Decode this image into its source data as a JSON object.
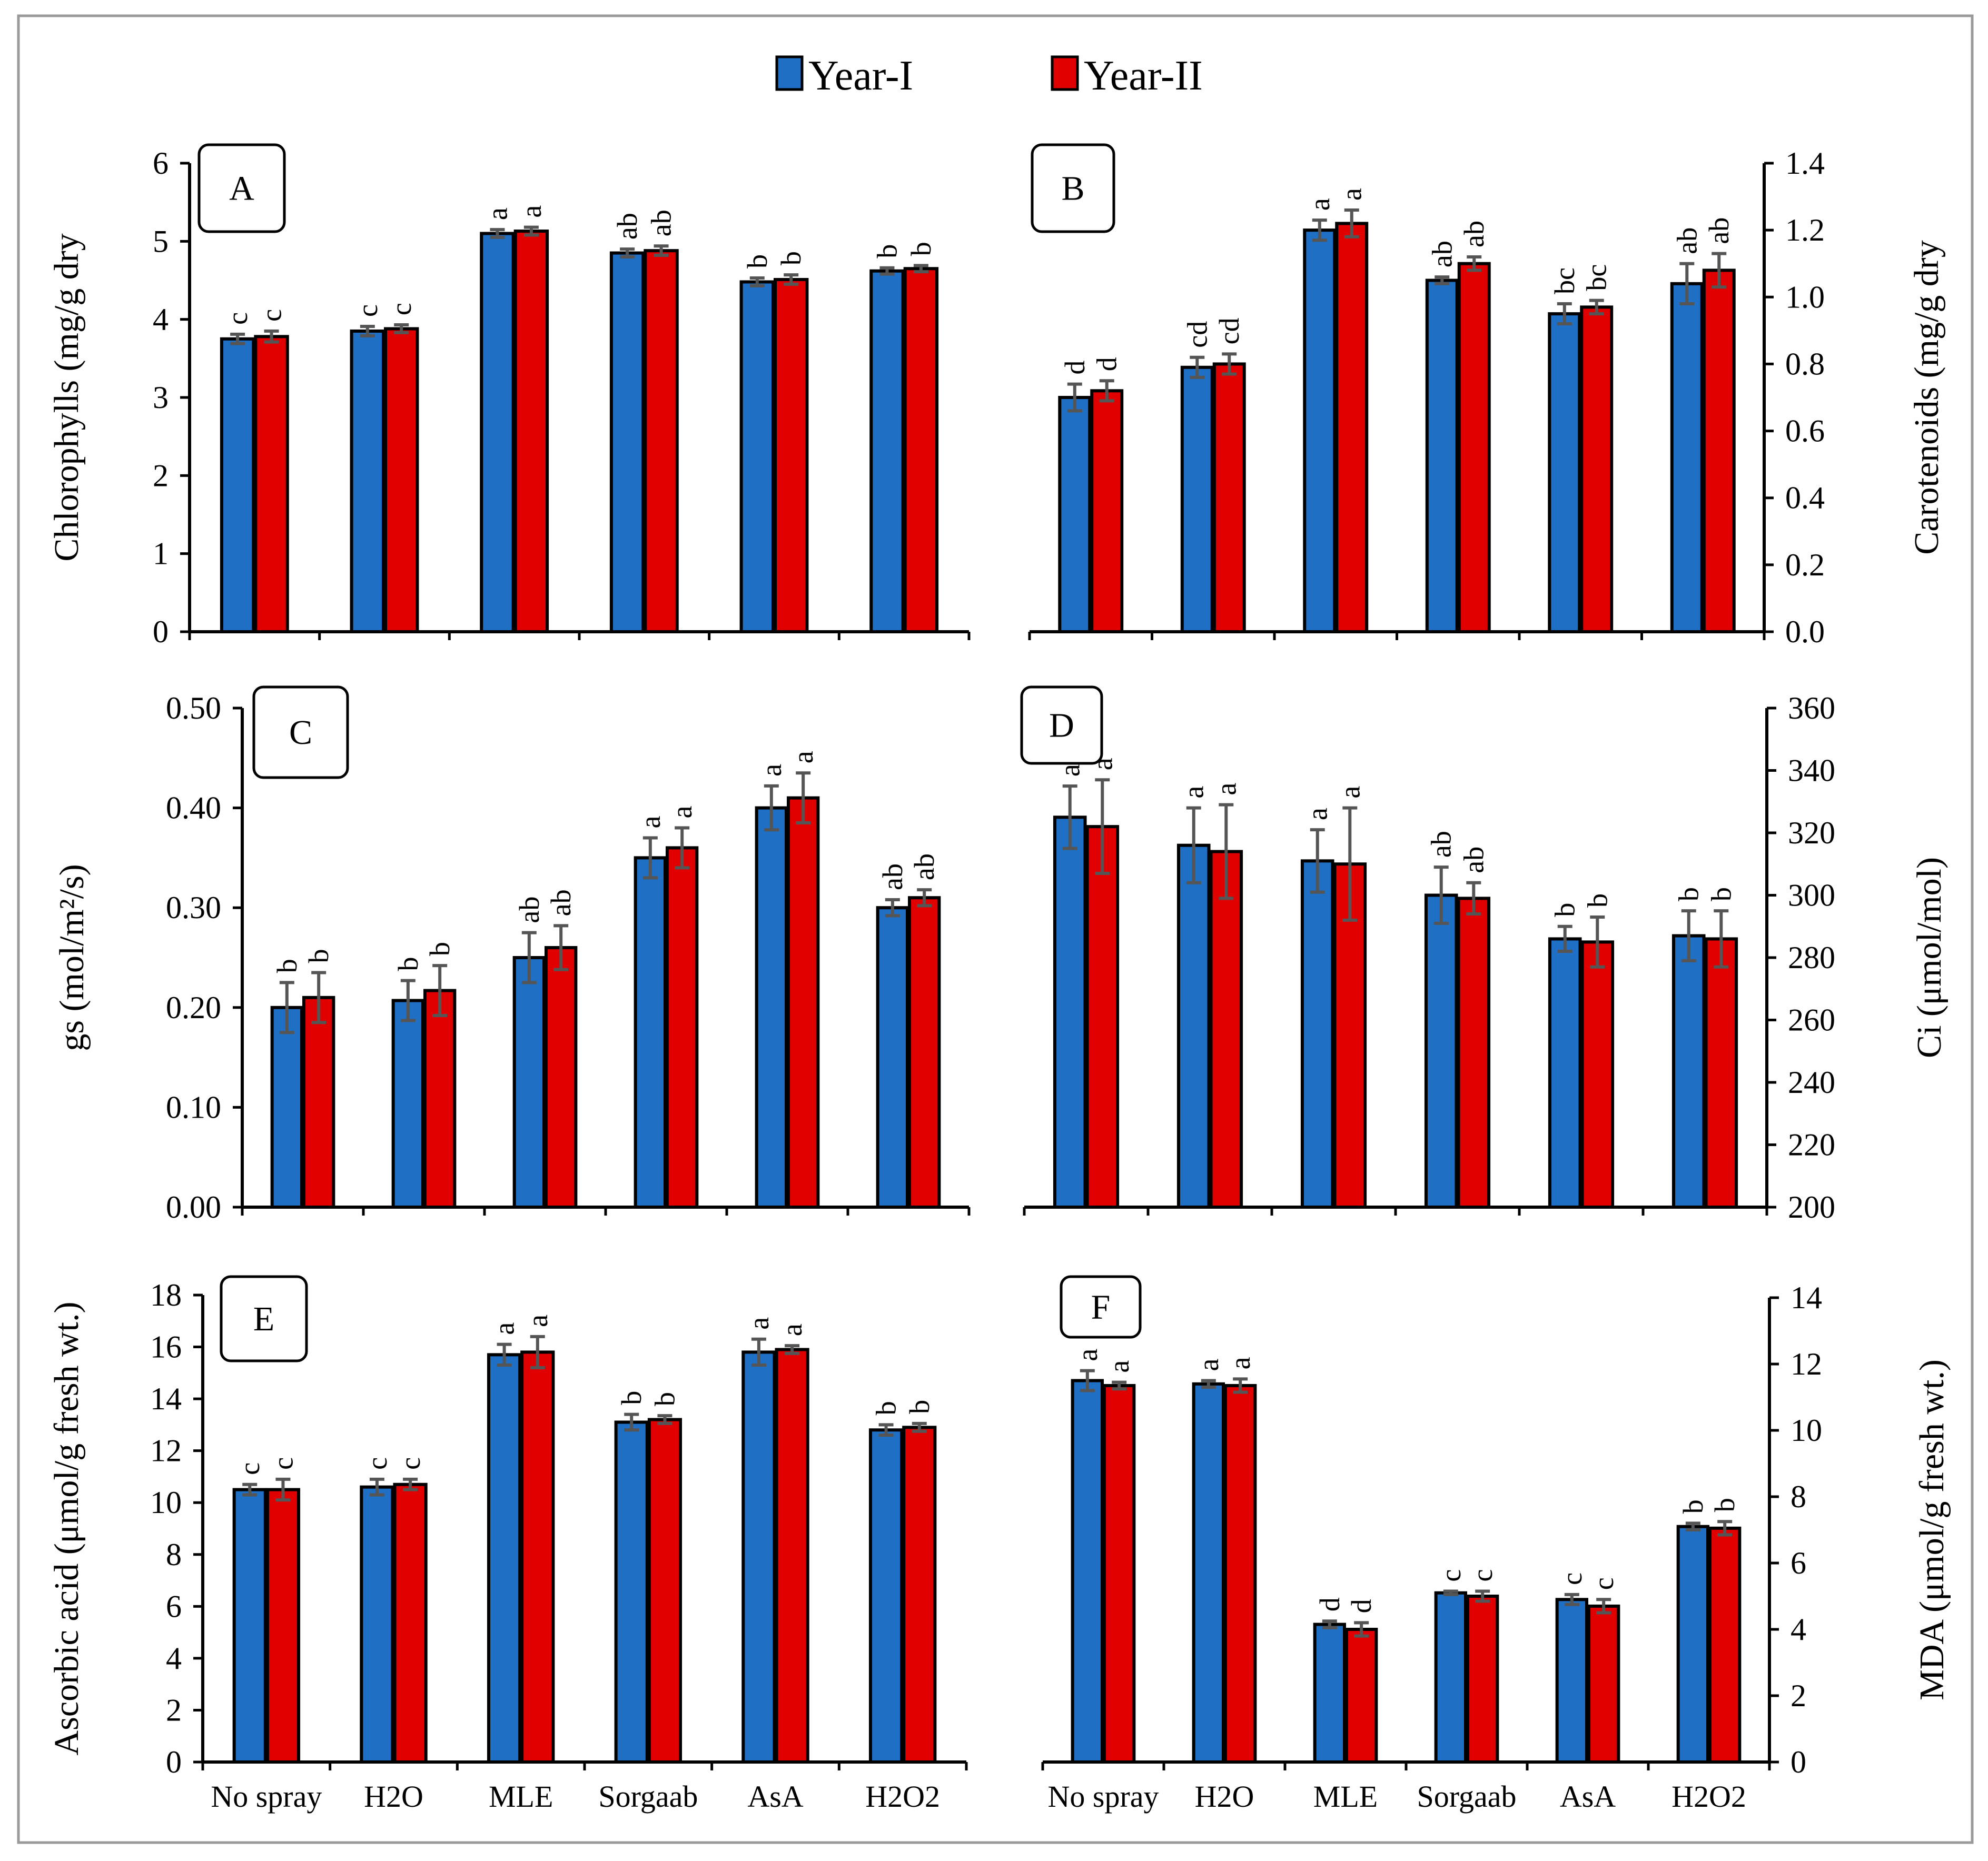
{
  "colors": {
    "year1": "#1f6fc5",
    "year2": "#e00000"
  },
  "legend": {
    "series": [
      "Year-I",
      "Year-II"
    ]
  },
  "chart_data": [
    {
      "id": "A",
      "type": "bar",
      "panel_label": "A",
      "ylabel": "Chlorophylls (mg/g dry",
      "y_axis_side": "left",
      "ylim": [
        0,
        6
      ],
      "y_ticks": [
        "0",
        "1",
        "2",
        "3",
        "4",
        "5",
        "6"
      ],
      "categories": [
        "No spray",
        "H2O",
        "MLE",
        "Sorgaab",
        "AsA",
        "H2O2"
      ],
      "show_categories": false,
      "series": [
        {
          "name": "Year-I",
          "values": [
            3.75,
            3.85,
            5.1,
            4.85,
            4.48,
            4.62
          ],
          "errors": [
            0.06,
            0.06,
            0.05,
            0.05,
            0.05,
            0.04
          ],
          "letters": [
            "c",
            "c",
            "a",
            "ab",
            "b",
            "b"
          ]
        },
        {
          "name": "Year-II",
          "values": [
            3.78,
            3.88,
            5.13,
            4.88,
            4.51,
            4.65
          ],
          "errors": [
            0.07,
            0.05,
            0.05,
            0.06,
            0.06,
            0.04
          ],
          "letters": [
            "c",
            "c",
            "a",
            "ab",
            "b",
            "b"
          ]
        }
      ]
    },
    {
      "id": "B",
      "type": "bar",
      "panel_label": "B",
      "ylabel": "Carotenoids (mg/g dry",
      "y_axis_side": "right",
      "ylim": [
        0,
        1.4
      ],
      "y_ticks": [
        "0.0",
        "0.2",
        "0.4",
        "0.6",
        "0.8",
        "1.0",
        "1.2",
        "1.4"
      ],
      "categories": [
        "No spray",
        "H2O",
        "MLE",
        "Sorgaab",
        "AsA",
        "H2O2"
      ],
      "show_categories": false,
      "series": [
        {
          "name": "Year-I",
          "values": [
            0.7,
            0.79,
            1.2,
            1.05,
            0.95,
            1.04
          ],
          "errors": [
            0.04,
            0.03,
            0.03,
            0.01,
            0.03,
            0.06
          ],
          "letters": [
            "d",
            "cd",
            "a",
            "ab",
            "bc",
            "ab"
          ]
        },
        {
          "name": "Year-II",
          "values": [
            0.72,
            0.8,
            1.22,
            1.1,
            0.97,
            1.08
          ],
          "errors": [
            0.03,
            0.03,
            0.04,
            0.02,
            0.02,
            0.05
          ],
          "letters": [
            "d",
            "cd",
            "a",
            "ab",
            "bc",
            "ab"
          ]
        }
      ]
    },
    {
      "id": "C",
      "type": "bar",
      "panel_label": "C",
      "ylabel": "gs (mol/m²/s)",
      "y_axis_side": "left",
      "ylim": [
        0,
        0.5
      ],
      "y_ticks": [
        "0.00",
        "0.10",
        "0.20",
        "0.30",
        "0.40",
        "0.50"
      ],
      "categories": [
        "No spray",
        "H2O",
        "MLE",
        "Sorgaab",
        "AsA",
        "H2O2"
      ],
      "show_categories": false,
      "series": [
        {
          "name": "Year-I",
          "values": [
            0.2,
            0.207,
            0.25,
            0.35,
            0.4,
            0.3
          ],
          "errors": [
            0.025,
            0.02,
            0.025,
            0.02,
            0.022,
            0.008
          ],
          "letters": [
            "b",
            "b",
            "ab",
            "a",
            "a",
            "ab"
          ]
        },
        {
          "name": "Year-II",
          "values": [
            0.21,
            0.217,
            0.26,
            0.36,
            0.41,
            0.31
          ],
          "errors": [
            0.025,
            0.025,
            0.022,
            0.02,
            0.025,
            0.008
          ],
          "letters": [
            "b",
            "b",
            "ab",
            "a",
            "a",
            "ab"
          ]
        }
      ]
    },
    {
      "id": "D",
      "type": "bar",
      "panel_label": "D",
      "ylabel": "Ci (μmol/mol)",
      "y_axis_side": "right",
      "ylim": [
        200,
        360
      ],
      "y_ticks": [
        "200",
        "220",
        "240",
        "260",
        "280",
        "300",
        "320",
        "340",
        "360"
      ],
      "categories": [
        "No spray",
        "H2O",
        "MLE",
        "Sorgaab",
        "AsA",
        "H2O2"
      ],
      "show_categories": false,
      "series": [
        {
          "name": "Year-I",
          "values": [
            325,
            316,
            311,
            300,
            286,
            287
          ],
          "errors": [
            10,
            12,
            10,
            9,
            4,
            8
          ],
          "letters": [
            "a",
            "a",
            "a",
            "ab",
            "b",
            "b"
          ]
        },
        {
          "name": "Year-II",
          "values": [
            322,
            314,
            310,
            299,
            285,
            286
          ],
          "errors": [
            15,
            15,
            18,
            5,
            8,
            9
          ],
          "letters": [
            "a",
            "a",
            "a",
            "ab",
            "b",
            "b"
          ]
        }
      ]
    },
    {
      "id": "E",
      "type": "bar",
      "panel_label": "E",
      "ylabel": "Ascorbic acid (μmol/g fresh wt.)",
      "y_axis_side": "left",
      "ylim": [
        0,
        18
      ],
      "y_ticks": [
        "0",
        "2",
        "4",
        "6",
        "8",
        "10",
        "12",
        "14",
        "16",
        "18"
      ],
      "categories": [
        "No spray",
        "H2O",
        "MLE",
        "Sorgaab",
        "AsA",
        "H2O2"
      ],
      "show_categories": true,
      "series": [
        {
          "name": "Year-I",
          "values": [
            10.5,
            10.6,
            15.7,
            13.1,
            15.8,
            12.8
          ],
          "errors": [
            0.2,
            0.3,
            0.4,
            0.3,
            0.5,
            0.2
          ],
          "letters": [
            "c",
            "c",
            "a",
            "b",
            "a",
            "b"
          ]
        },
        {
          "name": "Year-II",
          "values": [
            10.5,
            10.7,
            15.8,
            13.2,
            15.9,
            12.9
          ],
          "errors": [
            0.4,
            0.2,
            0.6,
            0.15,
            0.15,
            0.15
          ],
          "letters": [
            "c",
            "c",
            "a",
            "b",
            "a",
            "b"
          ]
        }
      ]
    },
    {
      "id": "F",
      "type": "bar",
      "panel_label": "F",
      "ylabel": "MDA (μmol/g fresh wt.)",
      "y_axis_side": "right",
      "ylim": [
        0,
        14
      ],
      "y_ticks": [
        "0",
        "2",
        "4",
        "6",
        "8",
        "10",
        "12",
        "14"
      ],
      "categories": [
        "No spray",
        "H2O",
        "MLE",
        "Sorgaab",
        "AsA",
        "H2O2"
      ],
      "show_categories": true,
      "series": [
        {
          "name": "Year-I",
          "values": [
            11.5,
            11.4,
            4.15,
            5.1,
            4.9,
            7.1
          ],
          "errors": [
            0.3,
            0.1,
            0.1,
            0.05,
            0.15,
            0.1
          ],
          "letters": [
            "a",
            "a",
            "d",
            "c",
            "c",
            "b"
          ]
        },
        {
          "name": "Year-II",
          "values": [
            11.35,
            11.35,
            4.0,
            5.0,
            4.7,
            7.05
          ],
          "errors": [
            0.1,
            0.2,
            0.2,
            0.15,
            0.2,
            0.2
          ],
          "letters": [
            "a",
            "a",
            "d",
            "c",
            "c",
            "b"
          ]
        }
      ]
    }
  ]
}
